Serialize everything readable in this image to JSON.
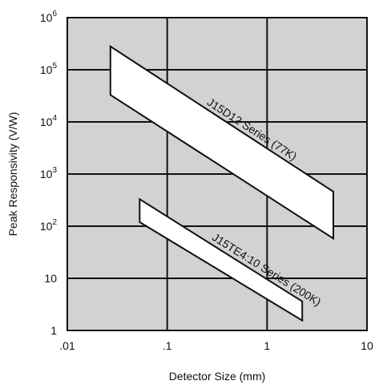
{
  "chart_data": {
    "type": "area",
    "title": "",
    "xlabel": "Detector Size (mm)",
    "ylabel": "Peak Responsivity (V/W)",
    "x_scale": "log",
    "y_scale": "log",
    "xlim": [
      0.01,
      10
    ],
    "ylim": [
      1,
      1000000
    ],
    "x_tick_labels": [
      ".01",
      ".1",
      "1",
      "10"
    ],
    "x_tick_values": [
      0.01,
      0.1,
      1,
      10
    ],
    "y_tick_labels": [
      {
        "base": "1",
        "exp": ""
      },
      {
        "base": "10",
        "exp": ""
      },
      {
        "base": "10",
        "exp": "2"
      },
      {
        "base": "10",
        "exp": "3"
      },
      {
        "base": "10",
        "exp": "4"
      },
      {
        "base": "10",
        "exp": "5"
      },
      {
        "base": "10",
        "exp": "6"
      }
    ],
    "y_tick_values": [
      1,
      10,
      100,
      1000,
      10000,
      100000,
      1000000
    ],
    "grid": true,
    "background_color": "#d2d2d2",
    "band_fill": "#ffffff",
    "series": [
      {
        "name": "J15D12 Series (77K)",
        "polygon": [
          {
            "x": 0.027,
            "y": 280000
          },
          {
            "x": 4.6,
            "y": 460
          },
          {
            "x": 4.6,
            "y": 58
          },
          {
            "x": 0.027,
            "y": 33000
          }
        ]
      },
      {
        "name": "J15TE4:10 Series (200K)",
        "polygon": [
          {
            "x": 0.053,
            "y": 330
          },
          {
            "x": 2.25,
            "y": 3.6
          },
          {
            "x": 2.25,
            "y": 1.55
          },
          {
            "x": 0.053,
            "y": 120
          }
        ]
      }
    ]
  }
}
